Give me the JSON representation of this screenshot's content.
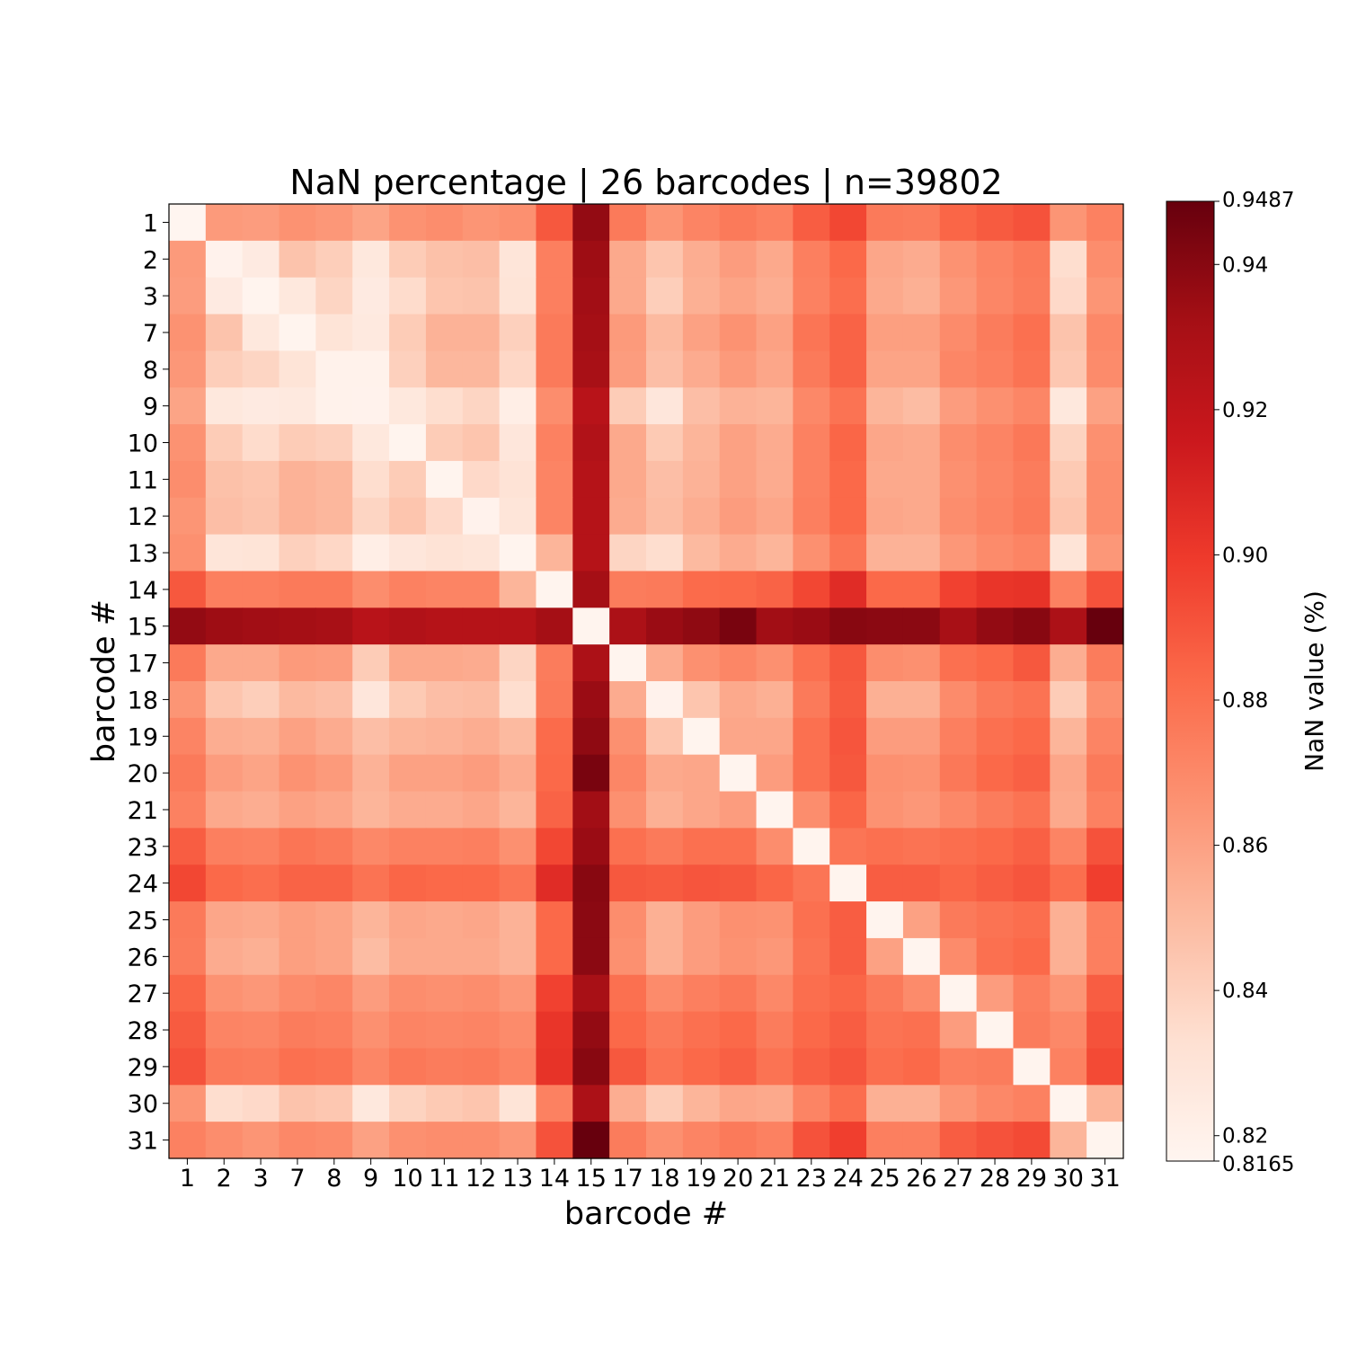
{
  "chart_data": {
    "type": "heatmap",
    "title": "NaN percentage | 26 barcodes | n=39802",
    "xlabel": "barcode #",
    "ylabel": "barcode #",
    "colorbar_label": "NaN value (%)",
    "colormap": "Reds",
    "colormap_stops": [
      "#fff5f0",
      "#fee0d2",
      "#fcbba1",
      "#fc9272",
      "#fb6a4a",
      "#ef3b2c",
      "#cb181d",
      "#a50f15",
      "#67000d"
    ],
    "vmin": 0.8165,
    "vmax": 0.9487,
    "colorbar_ticks": [
      "0.82",
      "0.84",
      "0.86",
      "0.88",
      "0.90",
      "0.92",
      "0.94"
    ],
    "colorbar_end_labels": [
      "0.8165",
      "0.9487"
    ],
    "barcodes": [
      "1",
      "2",
      "3",
      "7",
      "8",
      "9",
      "10",
      "11",
      "12",
      "13",
      "14",
      "15",
      "17",
      "18",
      "19",
      "20",
      "21",
      "23",
      "24",
      "25",
      "26",
      "27",
      "28",
      "29",
      "30",
      "31"
    ],
    "matrix": [
      [
        0.8165,
        0.863,
        0.862,
        0.866,
        0.864,
        0.859,
        0.866,
        0.868,
        0.865,
        0.867,
        0.889,
        0.937,
        0.876,
        0.865,
        0.872,
        0.876,
        0.873,
        0.887,
        0.895,
        0.876,
        0.875,
        0.884,
        0.888,
        0.891,
        0.865,
        0.873
      ],
      [
        0.863,
        0.8185,
        0.825,
        0.846,
        0.841,
        0.827,
        0.842,
        0.847,
        0.848,
        0.829,
        0.874,
        0.934,
        0.857,
        0.845,
        0.855,
        0.862,
        0.857,
        0.874,
        0.883,
        0.858,
        0.856,
        0.866,
        0.872,
        0.876,
        0.834,
        0.868
      ],
      [
        0.862,
        0.825,
        0.8175,
        0.827,
        0.838,
        0.825,
        0.835,
        0.845,
        0.846,
        0.83,
        0.874,
        0.933,
        0.857,
        0.841,
        0.854,
        0.859,
        0.855,
        0.873,
        0.881,
        0.857,
        0.854,
        0.864,
        0.871,
        0.875,
        0.836,
        0.865
      ],
      [
        0.866,
        0.846,
        0.827,
        0.8175,
        0.83,
        0.826,
        0.842,
        0.853,
        0.853,
        0.84,
        0.876,
        0.932,
        0.863,
        0.85,
        0.86,
        0.866,
        0.86,
        0.878,
        0.885,
        0.861,
        0.861,
        0.869,
        0.875,
        0.88,
        0.846,
        0.87
      ],
      [
        0.864,
        0.841,
        0.838,
        0.83,
        0.819,
        0.819,
        0.84,
        0.851,
        0.851,
        0.837,
        0.876,
        0.931,
        0.862,
        0.848,
        0.856,
        0.863,
        0.858,
        0.876,
        0.885,
        0.859,
        0.859,
        0.871,
        0.874,
        0.879,
        0.844,
        0.869
      ],
      [
        0.859,
        0.827,
        0.825,
        0.826,
        0.819,
        0.8185,
        0.827,
        0.834,
        0.838,
        0.822,
        0.868,
        0.924,
        0.842,
        0.828,
        0.848,
        0.853,
        0.852,
        0.87,
        0.879,
        0.852,
        0.849,
        0.862,
        0.867,
        0.871,
        0.827,
        0.86
      ],
      [
        0.866,
        0.842,
        0.835,
        0.842,
        0.84,
        0.827,
        0.8175,
        0.842,
        0.845,
        0.828,
        0.873,
        0.927,
        0.857,
        0.843,
        0.852,
        0.86,
        0.856,
        0.873,
        0.884,
        0.858,
        0.857,
        0.868,
        0.872,
        0.877,
        0.839,
        0.867
      ],
      [
        0.868,
        0.847,
        0.845,
        0.853,
        0.851,
        0.834,
        0.842,
        0.8175,
        0.836,
        0.831,
        0.872,
        0.925,
        0.857,
        0.848,
        0.853,
        0.86,
        0.856,
        0.873,
        0.883,
        0.857,
        0.857,
        0.867,
        0.871,
        0.875,
        0.843,
        0.868
      ],
      [
        0.865,
        0.848,
        0.846,
        0.853,
        0.851,
        0.838,
        0.845,
        0.836,
        0.8185,
        0.829,
        0.872,
        0.925,
        0.856,
        0.849,
        0.855,
        0.862,
        0.858,
        0.874,
        0.883,
        0.858,
        0.857,
        0.868,
        0.872,
        0.876,
        0.845,
        0.868
      ],
      [
        0.867,
        0.829,
        0.83,
        0.84,
        0.837,
        0.822,
        0.828,
        0.831,
        0.829,
        0.8175,
        0.852,
        0.925,
        0.838,
        0.834,
        0.85,
        0.856,
        0.852,
        0.867,
        0.878,
        0.853,
        0.853,
        0.864,
        0.869,
        0.872,
        0.83,
        0.864
      ],
      [
        0.889,
        0.874,
        0.874,
        0.876,
        0.876,
        0.868,
        0.873,
        0.872,
        0.872,
        0.852,
        0.8175,
        0.932,
        0.875,
        0.876,
        0.882,
        0.883,
        0.885,
        0.895,
        0.906,
        0.883,
        0.883,
        0.897,
        0.902,
        0.903,
        0.873,
        0.891
      ],
      [
        0.937,
        0.934,
        0.933,
        0.932,
        0.931,
        0.924,
        0.927,
        0.925,
        0.925,
        0.925,
        0.932,
        0.8175,
        0.929,
        0.935,
        0.938,
        0.944,
        0.933,
        0.935,
        0.94,
        0.939,
        0.939,
        0.931,
        0.937,
        0.94,
        0.929,
        0.9487
      ],
      [
        0.876,
        0.857,
        0.857,
        0.863,
        0.862,
        0.842,
        0.857,
        0.857,
        0.856,
        0.838,
        0.875,
        0.929,
        0.8175,
        0.856,
        0.867,
        0.871,
        0.867,
        0.88,
        0.889,
        0.868,
        0.867,
        0.88,
        0.883,
        0.889,
        0.855,
        0.875
      ],
      [
        0.865,
        0.845,
        0.841,
        0.85,
        0.848,
        0.828,
        0.843,
        0.848,
        0.849,
        0.834,
        0.876,
        0.935,
        0.856,
        0.8185,
        0.845,
        0.857,
        0.854,
        0.876,
        0.888,
        0.854,
        0.854,
        0.869,
        0.876,
        0.879,
        0.842,
        0.867
      ],
      [
        0.872,
        0.855,
        0.854,
        0.86,
        0.856,
        0.848,
        0.852,
        0.853,
        0.855,
        0.85,
        0.882,
        0.938,
        0.867,
        0.845,
        0.8175,
        0.858,
        0.858,
        0.88,
        0.89,
        0.862,
        0.862,
        0.874,
        0.88,
        0.883,
        0.852,
        0.872
      ],
      [
        0.876,
        0.862,
        0.859,
        0.866,
        0.863,
        0.853,
        0.86,
        0.86,
        0.862,
        0.856,
        0.883,
        0.944,
        0.871,
        0.857,
        0.858,
        0.8175,
        0.862,
        0.88,
        0.889,
        0.867,
        0.866,
        0.877,
        0.883,
        0.886,
        0.858,
        0.876
      ],
      [
        0.873,
        0.857,
        0.855,
        0.86,
        0.858,
        0.852,
        0.856,
        0.856,
        0.858,
        0.852,
        0.885,
        0.933,
        0.867,
        0.854,
        0.858,
        0.862,
        0.8175,
        0.868,
        0.884,
        0.866,
        0.864,
        0.87,
        0.875,
        0.879,
        0.857,
        0.873
      ],
      [
        0.887,
        0.874,
        0.873,
        0.878,
        0.876,
        0.87,
        0.873,
        0.873,
        0.874,
        0.867,
        0.895,
        0.935,
        0.88,
        0.876,
        0.88,
        0.88,
        0.868,
        0.8175,
        0.878,
        0.88,
        0.879,
        0.881,
        0.883,
        0.886,
        0.872,
        0.891
      ],
      [
        0.895,
        0.883,
        0.881,
        0.885,
        0.885,
        0.879,
        0.884,
        0.883,
        0.883,
        0.878,
        0.906,
        0.94,
        0.889,
        0.888,
        0.89,
        0.889,
        0.884,
        0.878,
        0.8175,
        0.887,
        0.887,
        0.884,
        0.887,
        0.89,
        0.881,
        0.898
      ],
      [
        0.876,
        0.858,
        0.857,
        0.861,
        0.859,
        0.852,
        0.858,
        0.857,
        0.858,
        0.853,
        0.883,
        0.939,
        0.868,
        0.854,
        0.862,
        0.867,
        0.866,
        0.88,
        0.887,
        0.8175,
        0.86,
        0.876,
        0.879,
        0.881,
        0.854,
        0.874
      ],
      [
        0.875,
        0.856,
        0.854,
        0.861,
        0.859,
        0.849,
        0.857,
        0.857,
        0.857,
        0.853,
        0.883,
        0.939,
        0.867,
        0.854,
        0.862,
        0.866,
        0.864,
        0.879,
        0.887,
        0.86,
        0.8175,
        0.869,
        0.88,
        0.883,
        0.854,
        0.874
      ],
      [
        0.884,
        0.866,
        0.864,
        0.869,
        0.871,
        0.862,
        0.868,
        0.867,
        0.868,
        0.864,
        0.897,
        0.931,
        0.88,
        0.869,
        0.874,
        0.877,
        0.87,
        0.881,
        0.884,
        0.876,
        0.869,
        0.8175,
        0.862,
        0.874,
        0.865,
        0.887
      ],
      [
        0.888,
        0.872,
        0.871,
        0.875,
        0.874,
        0.867,
        0.872,
        0.871,
        0.872,
        0.869,
        0.902,
        0.937,
        0.883,
        0.876,
        0.88,
        0.883,
        0.875,
        0.883,
        0.887,
        0.879,
        0.88,
        0.862,
        0.8175,
        0.875,
        0.87,
        0.891
      ],
      [
        0.891,
        0.876,
        0.875,
        0.88,
        0.879,
        0.871,
        0.877,
        0.875,
        0.876,
        0.872,
        0.903,
        0.94,
        0.889,
        0.879,
        0.883,
        0.886,
        0.879,
        0.886,
        0.89,
        0.881,
        0.883,
        0.874,
        0.875,
        0.8175,
        0.873,
        0.894
      ],
      [
        0.865,
        0.834,
        0.836,
        0.846,
        0.844,
        0.827,
        0.839,
        0.843,
        0.845,
        0.83,
        0.873,
        0.929,
        0.855,
        0.842,
        0.852,
        0.858,
        0.857,
        0.872,
        0.881,
        0.854,
        0.854,
        0.865,
        0.87,
        0.873,
        0.8175,
        0.852
      ],
      [
        0.873,
        0.868,
        0.865,
        0.87,
        0.869,
        0.86,
        0.867,
        0.868,
        0.868,
        0.864,
        0.891,
        0.9487,
        0.875,
        0.867,
        0.872,
        0.876,
        0.873,
        0.891,
        0.898,
        0.874,
        0.874,
        0.887,
        0.891,
        0.894,
        0.852,
        0.8175
      ]
    ]
  }
}
